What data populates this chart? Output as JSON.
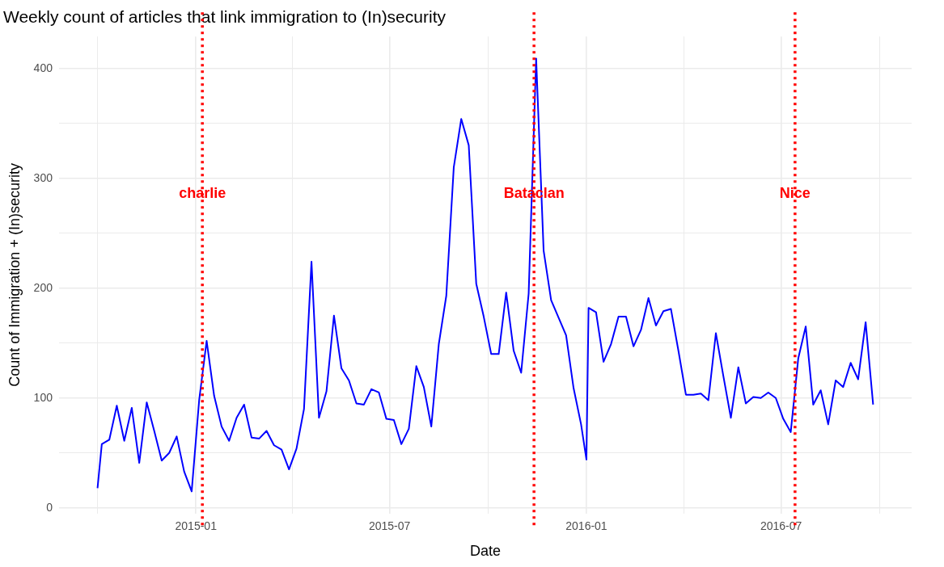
{
  "chart_data": {
    "type": "line",
    "title": "Weekly count of articles that link immigration to (In)security",
    "xlabel": "Date",
    "ylabel": "Count of Immigration + (In)security",
    "xlim": [
      "2014-08-26",
      "2016-10-31"
    ],
    "xticks": [
      {
        "value": "2014-10",
        "label": null
      },
      {
        "value": "2015-01",
        "label": "2015-01"
      },
      {
        "value": "2015-04",
        "label": null
      },
      {
        "value": "2015-07",
        "label": "2015-07"
      },
      {
        "value": "2015-10",
        "label": null
      },
      {
        "value": "2016-01",
        "label": "2016-01"
      },
      {
        "value": "2016-04",
        "label": null
      },
      {
        "value": "2016-07",
        "label": "2016-07"
      },
      {
        "value": "2016-10",
        "label": null
      }
    ],
    "ylim": [
      -5,
      429
    ],
    "yticks": [
      0,
      {
        "value": 50,
        "label": null
      },
      100,
      {
        "value": 150,
        "label": null
      },
      200,
      {
        "value": 250,
        "label": null
      },
      300,
      {
        "value": 350,
        "label": null
      },
      400
    ],
    "grid": true,
    "legend": false,
    "marker": "none",
    "line_style": "solid",
    "series": [
      {
        "color": "#0000ff",
        "x": [
          "2014-10-01",
          "2014-10-05",
          "2014-10-12",
          "2014-10-19",
          "2014-10-26",
          "2014-11-02",
          "2014-11-09",
          "2014-11-16",
          "2014-11-23",
          "2014-11-30",
          "2014-12-07",
          "2014-12-14",
          "2014-12-21",
          "2014-12-28",
          "2015-01-04",
          "2015-01-11",
          "2015-01-18",
          "2015-01-25",
          "2015-02-01",
          "2015-02-08",
          "2015-02-15",
          "2015-02-22",
          "2015-03-01",
          "2015-03-08",
          "2015-03-15",
          "2015-03-22",
          "2015-03-29",
          "2015-04-05",
          "2015-04-12",
          "2015-04-19",
          "2015-04-26",
          "2015-05-03",
          "2015-05-10",
          "2015-05-17",
          "2015-05-24",
          "2015-05-31",
          "2015-06-07",
          "2015-06-14",
          "2015-06-21",
          "2015-06-28",
          "2015-07-05",
          "2015-07-12",
          "2015-07-19",
          "2015-07-26",
          "2015-08-02",
          "2015-08-09",
          "2015-08-16",
          "2015-08-23",
          "2015-08-30",
          "2015-09-06",
          "2015-09-13",
          "2015-09-20",
          "2015-09-27",
          "2015-10-04",
          "2015-10-11",
          "2015-10-18",
          "2015-10-25",
          "2015-11-01",
          "2015-11-08",
          "2015-11-15",
          "2015-11-22",
          "2015-11-29",
          "2015-12-06",
          "2015-12-13",
          "2015-12-20",
          "2015-12-27",
          "2016-01-01",
          "2016-01-03",
          "2016-01-10",
          "2016-01-17",
          "2016-01-24",
          "2016-01-31",
          "2016-02-07",
          "2016-02-14",
          "2016-02-21",
          "2016-02-28",
          "2016-03-06",
          "2016-03-13",
          "2016-03-20",
          "2016-03-27",
          "2016-04-03",
          "2016-04-10",
          "2016-04-17",
          "2016-04-24",
          "2016-05-01",
          "2016-05-08",
          "2016-05-15",
          "2016-05-22",
          "2016-05-29",
          "2016-06-05",
          "2016-06-12",
          "2016-06-19",
          "2016-06-26",
          "2016-07-03",
          "2016-07-10",
          "2016-07-17",
          "2016-07-24",
          "2016-07-31",
          "2016-08-07",
          "2016-08-14",
          "2016-08-21",
          "2016-08-28",
          "2016-09-04",
          "2016-09-11",
          "2016-09-18",
          "2016-09-25"
        ],
        "values": [
          18,
          58,
          62,
          93,
          61,
          91,
          41,
          96,
          70,
          43,
          50,
          65,
          33,
          15,
          98,
          152,
          102,
          74,
          61,
          82,
          94,
          64,
          63,
          70,
          57,
          53,
          35,
          54,
          90,
          224,
          82,
          106,
          175,
          127,
          116,
          95,
          94,
          108,
          105,
          81,
          80,
          58,
          72,
          129,
          110,
          74,
          149,
          193,
          310,
          354,
          330,
          204,
          174,
          140,
          140,
          196,
          143,
          123,
          195,
          409,
          234,
          189,
          173,
          157,
          109,
          76,
          44,
          182,
          178,
          133,
          149,
          174,
          174,
          147,
          162,
          191,
          166,
          179,
          181,
          143,
          103,
          103,
          104,
          98,
          159,
          120,
          82,
          128,
          95,
          101,
          100,
          105,
          100,
          81,
          69,
          136,
          165,
          94,
          107,
          76,
          116,
          110,
          132,
          117,
          169,
          94
        ]
      }
    ],
    "ref_lines": [
      {
        "axis": "x",
        "value": "2015-01-07",
        "label": "charlie",
        "color": "#ff0000",
        "line_style": "dotted"
      },
      {
        "axis": "x",
        "value": "2015-11-13",
        "label": "Bataclan",
        "color": "#ff0000",
        "line_style": "dotted"
      },
      {
        "axis": "x",
        "value": "2016-07-14",
        "label": "Nice",
        "color": "#ff0000",
        "line_style": "dotted"
      }
    ]
  }
}
